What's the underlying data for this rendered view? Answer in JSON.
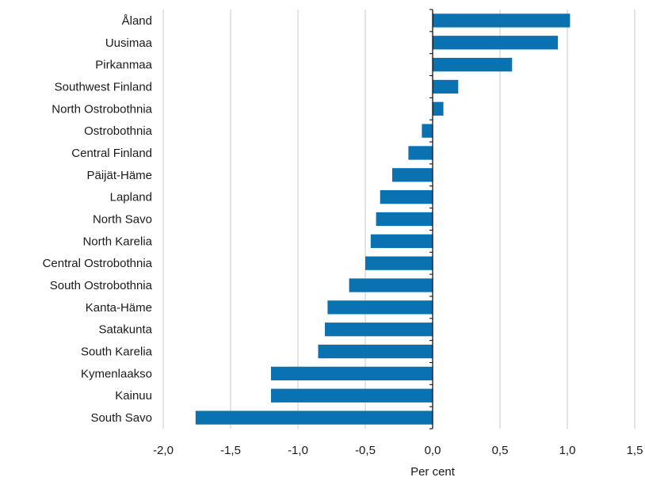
{
  "chart_data": {
    "type": "bar",
    "orientation": "horizontal",
    "categories": [
      "Åland",
      "Uusimaa",
      "Pirkanmaa",
      "Southwest Finland",
      "North Ostrobothnia",
      "Ostrobothnia",
      "Central Finland",
      "Päijät-Häme",
      "Lapland",
      "North Savo",
      "North Karelia",
      "Central Ostrobothnia",
      "South Ostrobothnia",
      "Kanta-Häme",
      "Satakunta",
      "South Karelia",
      "Kymenlaakso",
      "Kainuu",
      "South Savo"
    ],
    "values": [
      1.02,
      0.93,
      0.59,
      0.19,
      0.08,
      -0.08,
      -0.18,
      -0.3,
      -0.39,
      -0.42,
      -0.46,
      -0.5,
      -0.62,
      -0.78,
      -0.8,
      -0.85,
      -1.2,
      -1.2,
      -1.76
    ],
    "xlabel": "Per cent",
    "xlim": [
      -2.0,
      1.5
    ],
    "xticks": [
      -2.0,
      -1.5,
      -1.0,
      -0.5,
      0.0,
      0.5,
      1.0,
      1.5
    ],
    "xtick_labels": [
      "-2,0",
      "-1,5",
      "-1,0",
      "-0,5",
      "0,0",
      "0,5",
      "1,0",
      "1,5"
    ],
    "grid": "vertical",
    "bar_color": "#0a72b0",
    "grid_color": "#c8c8c8",
    "axis_color": "#000000"
  }
}
